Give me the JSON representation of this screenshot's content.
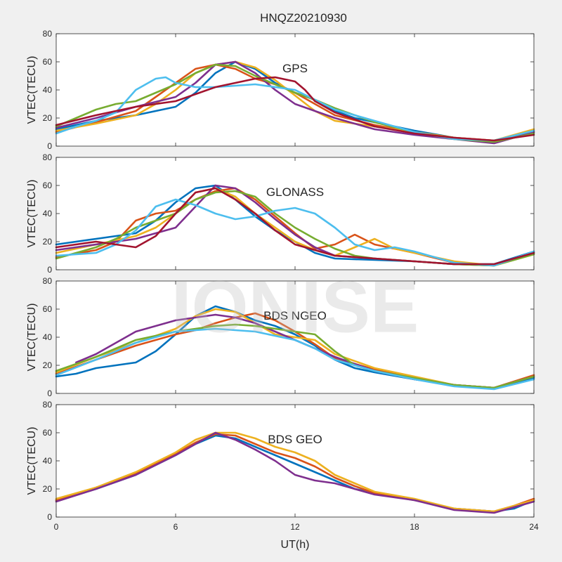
{
  "figure": {
    "title": "HNQZ20210930",
    "xlabel": "UT(h)",
    "watermark": "IONISE",
    "x_ticks": [
      "0",
      "6",
      "12",
      "18",
      "24"
    ],
    "y_ticks": [
      "0",
      "20",
      "40",
      "60",
      "80"
    ],
    "colors": [
      "#0072BD",
      "#D95319",
      "#EDB120",
      "#7E2F8E",
      "#77AC30",
      "#4DBEEE",
      "#A2142F"
    ]
  },
  "chart_data": [
    {
      "type": "line",
      "panel_label": "GPS",
      "ylabel": "VTEC(TECU)",
      "xlim": [
        0,
        24
      ],
      "ylim": [
        0,
        80
      ],
      "grid": false,
      "series": [
        {
          "color": "#0072BD",
          "x": [
            0,
            2,
            4,
            6,
            7,
            8,
            9,
            10,
            11,
            12,
            13,
            14,
            15,
            16,
            18,
            20,
            22,
            24
          ],
          "y": [
            12,
            18,
            22,
            28,
            38,
            52,
            60,
            55,
            45,
            38,
            33,
            25,
            20,
            17,
            11,
            6,
            3,
            10
          ]
        },
        {
          "color": "#D95319",
          "x": [
            0,
            2,
            4,
            5,
            6,
            7,
            8,
            9,
            10,
            11,
            12,
            13,
            14,
            16,
            18,
            20,
            22,
            24
          ],
          "y": [
            10,
            17,
            25,
            35,
            45,
            55,
            58,
            55,
            48,
            44,
            38,
            30,
            22,
            15,
            10,
            6,
            4,
            11
          ]
        },
        {
          "color": "#EDB120",
          "x": [
            0,
            2,
            4,
            5,
            6,
            7,
            8,
            9,
            10,
            11,
            12,
            13,
            14,
            16,
            18,
            20,
            22,
            24
          ],
          "y": [
            11,
            16,
            22,
            30,
            40,
            52,
            58,
            60,
            56,
            47,
            36,
            25,
            18,
            14,
            10,
            6,
            4,
            12
          ]
        },
        {
          "color": "#7E2F8E",
          "x": [
            0,
            2,
            4,
            6,
            7,
            8,
            9,
            10,
            11,
            12,
            13,
            14,
            15,
            16,
            18,
            20,
            22,
            23,
            24
          ],
          "y": [
            13,
            20,
            28,
            35,
            45,
            58,
            60,
            52,
            40,
            30,
            25,
            20,
            16,
            12,
            8,
            5,
            2,
            6,
            10
          ]
        },
        {
          "color": "#77AC30",
          "x": [
            0,
            1,
            2,
            3,
            4,
            5,
            6,
            7,
            8,
            9,
            10,
            11,
            12,
            13,
            14,
            16,
            18,
            20,
            22,
            24
          ],
          "y": [
            14,
            20,
            26,
            30,
            32,
            38,
            44,
            52,
            58,
            57,
            50,
            44,
            38,
            33,
            27,
            17,
            10,
            5,
            3,
            9
          ]
        },
        {
          "color": "#4DBEEE",
          "x": [
            0,
            1,
            2,
            3,
            4,
            5,
            5.5,
            6,
            7,
            8,
            9,
            10,
            12,
            14,
            16,
            18,
            20,
            22,
            24
          ],
          "y": [
            9,
            14,
            18,
            24,
            40,
            48,
            49,
            45,
            42,
            42,
            43,
            44,
            40,
            26,
            18,
            10,
            5,
            4,
            11
          ]
        },
        {
          "color": "#A2142F",
          "x": [
            0,
            2,
            4,
            6,
            8,
            10,
            11,
            12,
            12.5,
            13,
            14,
            16,
            18,
            20,
            22,
            24
          ],
          "y": [
            15,
            22,
            28,
            32,
            42,
            48,
            49,
            46,
            40,
            32,
            24,
            14,
            9,
            6,
            4,
            8
          ]
        }
      ]
    },
    {
      "type": "line",
      "panel_label": "GLONASS",
      "ylabel": "VTEC(TECU)",
      "xlim": [
        0,
        24
      ],
      "ylim": [
        0,
        80
      ],
      "grid": false,
      "series": [
        {
          "color": "#0072BD",
          "x": [
            0,
            2,
            4,
            5,
            6,
            7,
            8,
            9,
            10,
            11,
            12,
            13,
            14,
            16,
            18,
            20,
            22,
            24
          ],
          "y": [
            18,
            22,
            26,
            35,
            48,
            58,
            60,
            50,
            38,
            28,
            20,
            12,
            8,
            7,
            6,
            4,
            4,
            13
          ]
        },
        {
          "color": "#D95319",
          "x": [
            0,
            2,
            3,
            4,
            5,
            6,
            7,
            8,
            9,
            10,
            11,
            12,
            13,
            14,
            15,
            16,
            18,
            20,
            22,
            24
          ],
          "y": [
            9,
            14,
            20,
            35,
            40,
            42,
            50,
            56,
            58,
            50,
            38,
            26,
            15,
            18,
            25,
            18,
            12,
            5,
            3,
            12
          ]
        },
        {
          "color": "#EDB120",
          "x": [
            0,
            2,
            4,
            5,
            6,
            7,
            8,
            9,
            10,
            11,
            12,
            13,
            14,
            15,
            16,
            17,
            18,
            20,
            22,
            24
          ],
          "y": [
            12,
            18,
            24,
            30,
            40,
            55,
            58,
            52,
            40,
            30,
            20,
            14,
            10,
            16,
            22,
            15,
            12,
            6,
            3,
            11
          ]
        },
        {
          "color": "#7E2F8E",
          "x": [
            0,
            2,
            4,
            6,
            7,
            8,
            9,
            10,
            11,
            12,
            13,
            14,
            16,
            18,
            20,
            22,
            24
          ],
          "y": [
            14,
            18,
            22,
            30,
            45,
            60,
            58,
            48,
            36,
            25,
            16,
            10,
            8,
            6,
            4,
            3,
            12
          ]
        },
        {
          "color": "#77AC30",
          "x": [
            0,
            1,
            2,
            3,
            4,
            6,
            7,
            8,
            9,
            10,
            11,
            12,
            13,
            14,
            15,
            16,
            18,
            20,
            22,
            24
          ],
          "y": [
            8,
            12,
            16,
            22,
            30,
            40,
            50,
            55,
            56,
            52,
            40,
            30,
            22,
            15,
            10,
            8,
            6,
            4,
            3,
            11
          ]
        },
        {
          "color": "#4DBEEE",
          "x": [
            0,
            2,
            3,
            4,
            5,
            6,
            7,
            8,
            9,
            10,
            11,
            12,
            13,
            14,
            15,
            16,
            17,
            18,
            20,
            22,
            24
          ],
          "y": [
            10,
            12,
            18,
            28,
            45,
            50,
            46,
            40,
            36,
            38,
            42,
            44,
            40,
            30,
            18,
            14,
            16,
            13,
            5,
            3,
            13
          ]
        },
        {
          "color": "#A2142F",
          "x": [
            0,
            2,
            3,
            4,
            5,
            6,
            7,
            8,
            9,
            10,
            11,
            12,
            14,
            16,
            18,
            20,
            22,
            24
          ],
          "y": [
            16,
            20,
            18,
            16,
            24,
            40,
            55,
            58,
            50,
            40,
            28,
            18,
            10,
            8,
            6,
            4,
            4,
            12
          ]
        }
      ]
    },
    {
      "type": "line",
      "panel_label": "BDS NGEO",
      "ylabel": "VTEC(TECU)",
      "xlim": [
        0,
        24
      ],
      "ylim": [
        0,
        80
      ],
      "grid": false,
      "series": [
        {
          "color": "#0072BD",
          "x": [
            0,
            1,
            2,
            3,
            4,
            5,
            6,
            7,
            8,
            9,
            10,
            11,
            12,
            13,
            14,
            15,
            16,
            18,
            20,
            22,
            24
          ],
          "y": [
            12,
            14,
            18,
            20,
            22,
            30,
            42,
            55,
            62,
            58,
            52,
            48,
            42,
            34,
            24,
            18,
            15,
            10,
            6,
            4,
            11
          ]
        },
        {
          "color": "#D95319",
          "x": [
            0,
            2,
            4,
            6,
            7,
            8,
            9,
            10,
            11,
            12,
            13,
            14,
            16,
            18,
            20,
            22,
            24
          ],
          "y": [
            14,
            24,
            34,
            42,
            45,
            50,
            54,
            57,
            52,
            44,
            35,
            25,
            17,
            11,
            6,
            4,
            13
          ]
        },
        {
          "color": "#EDB120",
          "x": [
            0,
            2,
            4,
            6,
            7,
            8,
            9,
            10,
            11,
            12,
            13,
            14,
            16,
            18,
            20,
            22,
            24
          ],
          "y": [
            15,
            26,
            36,
            46,
            55,
            60,
            58,
            50,
            42,
            40,
            38,
            28,
            18,
            12,
            6,
            4,
            12
          ]
        },
        {
          "color": "#7E2F8E",
          "x": [
            1,
            2,
            3,
            4,
            5,
            6,
            7,
            8,
            9,
            10,
            11,
            12,
            13,
            14,
            16,
            18,
            20,
            22,
            24
          ],
          "y": [
            22,
            28,
            36,
            44,
            48,
            52,
            54,
            56,
            54,
            50,
            44,
            38,
            32,
            26,
            16,
            10,
            6,
            4,
            12
          ]
        },
        {
          "color": "#77AC30",
          "x": [
            0,
            2,
            4,
            6,
            7,
            8,
            9,
            10,
            11,
            12,
            13,
            14,
            15,
            16,
            18,
            20,
            22,
            24
          ],
          "y": [
            16,
            26,
            38,
            44,
            46,
            48,
            49,
            48,
            46,
            44,
            42,
            30,
            20,
            16,
            11,
            6,
            4,
            12
          ]
        },
        {
          "color": "#4DBEEE",
          "x": [
            0,
            2,
            4,
            6,
            8,
            10,
            12,
            13,
            14,
            16,
            18,
            20,
            22,
            24
          ],
          "y": [
            13,
            24,
            36,
            44,
            46,
            44,
            38,
            32,
            24,
            16,
            10,
            5,
            3,
            10
          ]
        }
      ]
    },
    {
      "type": "line",
      "panel_label": "BDS GEO",
      "ylabel": "VTEC(TECU)",
      "xlim": [
        0,
        24
      ],
      "ylim": [
        0,
        80
      ],
      "grid": false,
      "series": [
        {
          "color": "#0072BD",
          "x": [
            0,
            2,
            4,
            6,
            7,
            8,
            9,
            10,
            11,
            12,
            13,
            14,
            15,
            16,
            18,
            20,
            22,
            23,
            24
          ],
          "y": [
            12,
            20,
            30,
            44,
            52,
            58,
            56,
            50,
            44,
            38,
            32,
            26,
            20,
            17,
            12,
            6,
            4,
            6,
            12
          ]
        },
        {
          "color": "#D95319",
          "x": [
            0,
            2,
            4,
            6,
            7,
            8,
            9,
            10,
            11,
            12,
            13,
            14,
            15,
            16,
            18,
            20,
            22,
            23,
            24
          ],
          "y": [
            12,
            21,
            31,
            45,
            53,
            59,
            58,
            52,
            46,
            42,
            36,
            28,
            22,
            17,
            12,
            6,
            4,
            8,
            13
          ]
        },
        {
          "color": "#EDB120",
          "x": [
            0,
            2,
            4,
            6,
            7,
            8,
            9,
            10,
            11,
            12,
            13,
            14,
            15,
            16,
            18,
            20,
            22,
            23,
            24
          ],
          "y": [
            13,
            21,
            32,
            46,
            55,
            60,
            60,
            56,
            50,
            46,
            40,
            30,
            24,
            18,
            13,
            6,
            4,
            8,
            12
          ]
        },
        {
          "color": "#7E2F8E",
          "x": [
            0,
            2,
            4,
            6,
            7,
            8,
            9,
            10,
            11,
            12,
            13,
            14,
            15,
            16,
            17,
            18,
            20,
            22,
            23,
            24
          ],
          "y": [
            11,
            20,
            30,
            44,
            52,
            60,
            55,
            48,
            40,
            30,
            26,
            24,
            20,
            16,
            14,
            12,
            5,
            3,
            7,
            11
          ]
        }
      ]
    }
  ]
}
